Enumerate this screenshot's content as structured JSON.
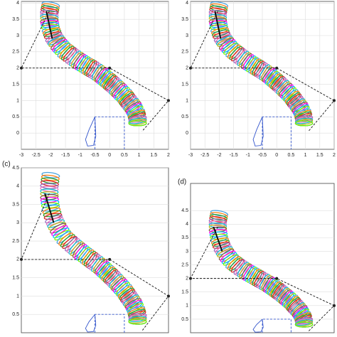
{
  "chart_data": [
    {
      "type": "line",
      "xlim": [
        -3,
        2
      ],
      "ylim": [
        -0.5,
        4.05
      ],
      "xticks": [
        -3,
        -2.5,
        -2,
        -1.5,
        -1,
        -0.5,
        0,
        0.5,
        1,
        1.5,
        2
      ],
      "yticks": [
        0,
        0.5,
        1,
        1.5,
        2,
        2.5,
        3,
        3.5,
        4
      ],
      "grid": true,
      "palette": [
        "#4aa3df",
        "#ff7f0e",
        "#2ca02c",
        "#d62728",
        "#9467bd",
        "#e377c2",
        "#17becf",
        "#bcbd22",
        "#8c564b",
        "#ff00ff",
        "#00bfff",
        "#7cfc00"
      ],
      "series": [
        {
          "style": "tube",
          "x": [
            -2.0,
            -2.05,
            -2.05,
            -2.0,
            -1.9,
            -1.75,
            -1.55,
            -1.3,
            -1.05,
            -0.8,
            -0.55,
            -0.3,
            -0.1,
            0.1,
            0.3,
            0.5,
            0.65,
            0.8,
            0.9,
            0.95,
            0.95
          ],
          "values": [
            3.95,
            3.7,
            3.45,
            3.2,
            2.95,
            2.75,
            2.55,
            2.38,
            2.22,
            2.08,
            1.95,
            1.8,
            1.65,
            1.5,
            1.33,
            1.15,
            0.97,
            0.8,
            0.62,
            0.45,
            0.3
          ]
        },
        {
          "style": "rod",
          "color": "#111111",
          "x": [
            -1.95,
            -2.15
          ],
          "values": [
            2.9,
            3.75
          ]
        },
        {
          "style": "dashed",
          "color": "#111111",
          "x": [
            -2.05,
            -3,
            0,
            2,
            1.1
          ],
          "values": [
            3.75,
            2,
            2,
            1,
            0.05
          ]
        },
        {
          "style": "dashed",
          "color": "#3355cc",
          "x": [
            -0.5,
            -0.5,
            0.5,
            0.5
          ],
          "values": [
            -0.5,
            0.5,
            0.5,
            -0.5
          ]
        },
        {
          "style": "loop",
          "color": "#3355cc",
          "x": [
            -0.5,
            -0.7,
            -0.82,
            -0.75,
            -0.55,
            -0.47,
            -0.5
          ],
          "values": [
            0.5,
            0.1,
            -0.2,
            -0.4,
            -0.38,
            -0.1,
            0.5
          ]
        },
        {
          "style": "points",
          "color": "#222222",
          "x": [
            -3,
            0,
            2
          ],
          "values": [
            2,
            2,
            1
          ]
        }
      ]
    },
    {
      "type": "line",
      "xlim": [
        -3,
        2
      ],
      "ylim": [
        -0.5,
        4.05
      ],
      "xticks": [
        -3,
        -2.5,
        -2,
        -1.5,
        -1,
        -0.5,
        0,
        0.5,
        1,
        1.5,
        2
      ],
      "yticks": [
        0,
        0.5,
        1,
        1.5,
        2,
        2.5,
        3,
        3.5,
        4
      ],
      "grid": true,
      "palette": [
        "#4aa3df",
        "#ff7f0e",
        "#2ca02c",
        "#d62728",
        "#9467bd",
        "#e377c2",
        "#17becf",
        "#bcbd22",
        "#8c564b",
        "#ff00ff",
        "#00bfff",
        "#7cfc00"
      ],
      "series": [
        {
          "style": "tube",
          "x": [
            -2.0,
            -2.05,
            -2.05,
            -2.0,
            -1.9,
            -1.75,
            -1.55,
            -1.3,
            -1.05,
            -0.8,
            -0.55,
            -0.3,
            -0.1,
            0.1,
            0.3,
            0.5,
            0.65,
            0.8,
            0.9,
            0.95,
            0.95
          ],
          "values": [
            3.95,
            3.7,
            3.45,
            3.2,
            2.95,
            2.75,
            2.55,
            2.38,
            2.22,
            2.08,
            1.95,
            1.8,
            1.65,
            1.5,
            1.33,
            1.15,
            0.97,
            0.8,
            0.62,
            0.45,
            0.3
          ]
        },
        {
          "style": "rod",
          "color": "#111111",
          "x": [
            -1.95,
            -2.15
          ],
          "values": [
            2.9,
            3.75
          ]
        },
        {
          "style": "dashed",
          "color": "#111111",
          "x": [
            -2.05,
            -3,
            0,
            2,
            1.1
          ],
          "values": [
            3.75,
            2,
            2,
            1,
            0.05
          ]
        },
        {
          "style": "dashed",
          "color": "#3355cc",
          "x": [
            -0.5,
            -0.5,
            0.5,
            0.5
          ],
          "values": [
            -0.5,
            0.5,
            0.5,
            -0.5
          ]
        },
        {
          "style": "loop",
          "color": "#3355cc",
          "x": [
            -0.5,
            -0.7,
            -0.82,
            -0.75,
            -0.55,
            -0.47,
            -0.5
          ],
          "values": [
            0.5,
            0.1,
            -0.2,
            -0.4,
            -0.38,
            -0.1,
            0.5
          ]
        },
        {
          "style": "points",
          "color": "#222222",
          "x": [
            -3,
            0,
            2
          ],
          "values": [
            2,
            2,
            1
          ]
        }
      ]
    },
    {
      "type": "line",
      "label": "(c)",
      "xlim": [
        -3,
        2
      ],
      "ylim": [
        0,
        4.5
      ],
      "yticks": [
        0.5,
        1,
        1.5,
        2,
        2.5,
        3,
        3.5,
        4,
        4.5
      ],
      "grid": true,
      "palette": [
        "#4aa3df",
        "#ff7f0e",
        "#2ca02c",
        "#d62728",
        "#9467bd",
        "#e377c2",
        "#17becf",
        "#bcbd22",
        "#8c564b",
        "#ff00ff",
        "#00bfff",
        "#7cfc00"
      ],
      "series": [
        {
          "style": "tube",
          "x": [
            -2.0,
            -2.05,
            -2.05,
            -2.0,
            -1.9,
            -1.75,
            -1.55,
            -1.3,
            -1.05,
            -0.8,
            -0.55,
            -0.3,
            -0.1,
            0.1,
            0.3,
            0.5,
            0.65,
            0.8,
            0.9,
            0.95,
            0.95
          ],
          "values": [
            4.3,
            4.0,
            3.7,
            3.4,
            3.1,
            2.85,
            2.6,
            2.42,
            2.25,
            2.1,
            1.95,
            1.8,
            1.65,
            1.5,
            1.33,
            1.15,
            0.97,
            0.8,
            0.62,
            0.45,
            0.3
          ]
        },
        {
          "style": "rod",
          "color": "#111111",
          "x": [
            -1.9,
            -2.2
          ],
          "values": [
            3.0,
            3.8
          ]
        },
        {
          "style": "dashed",
          "color": "#111111",
          "x": [
            -2.05,
            -3,
            0,
            2,
            1.1
          ],
          "values": [
            3.8,
            2,
            2,
            1,
            0.05
          ]
        },
        {
          "style": "dashed",
          "color": "#3355cc",
          "x": [
            -0.5,
            -0.5,
            0.5,
            0.5
          ],
          "values": [
            0,
            0.5,
            0.5,
            0
          ]
        },
        {
          "style": "loop",
          "color": "#3355cc",
          "x": [
            -0.5,
            -0.7,
            -0.82,
            -0.75,
            -0.55,
            -0.47,
            -0.5
          ],
          "values": [
            0.5,
            0.3,
            0.12,
            0.02,
            0.03,
            0.2,
            0.5
          ]
        },
        {
          "style": "points",
          "color": "#222222",
          "x": [
            -3,
            0,
            2
          ],
          "values": [
            2,
            2,
            1
          ]
        }
      ]
    },
    {
      "type": "line",
      "label": "(d)",
      "xlim": [
        -3,
        2
      ],
      "ylim": [
        0,
        5.5
      ],
      "yticks": [
        0.5,
        1,
        1.5,
        2,
        2.5,
        3,
        3.5,
        4,
        4.5
      ],
      "grid": true,
      "palette": [
        "#4aa3df",
        "#ff7f0e",
        "#2ca02c",
        "#d62728",
        "#9467bd",
        "#e377c2",
        "#17becf",
        "#bcbd22",
        "#8c564b",
        "#ff00ff",
        "#00bfff",
        "#7cfc00"
      ],
      "series": [
        {
          "style": "tube",
          "x": [
            -2.0,
            -2.05,
            -2.05,
            -2.0,
            -1.9,
            -1.75,
            -1.55,
            -1.3,
            -1.05,
            -0.8,
            -0.55,
            -0.3,
            -0.1,
            0.1,
            0.3,
            0.5,
            0.65,
            0.8,
            0.9,
            0.95,
            0.95
          ],
          "values": [
            4.4,
            4.1,
            3.8,
            3.45,
            3.15,
            2.88,
            2.62,
            2.42,
            2.25,
            2.1,
            1.95,
            1.8,
            1.65,
            1.5,
            1.33,
            1.15,
            0.97,
            0.8,
            0.62,
            0.45,
            0.3
          ]
        },
        {
          "style": "rod",
          "color": "#111111",
          "x": [
            -1.9,
            -2.2
          ],
          "values": [
            3.0,
            3.9
          ]
        },
        {
          "style": "dashed",
          "color": "#111111",
          "x": [
            -2.05,
            -3,
            0,
            2,
            1.1
          ],
          "values": [
            3.9,
            2,
            2,
            1,
            0.05
          ]
        },
        {
          "style": "dashed",
          "color": "#3355cc",
          "x": [
            -0.5,
            -0.5,
            0.5,
            0.5
          ],
          "values": [
            0,
            0.5,
            0.5,
            0
          ]
        },
        {
          "style": "loop",
          "color": "#3355cc",
          "x": [
            -0.5,
            -0.7,
            -0.82,
            -0.75,
            -0.55,
            -0.47,
            -0.5
          ],
          "values": [
            0.5,
            0.3,
            0.12,
            0.02,
            0.03,
            0.2,
            0.5
          ]
        },
        {
          "style": "points",
          "color": "#222222",
          "x": [
            -3,
            0,
            2
          ],
          "values": [
            2,
            2,
            1
          ]
        }
      ]
    }
  ]
}
